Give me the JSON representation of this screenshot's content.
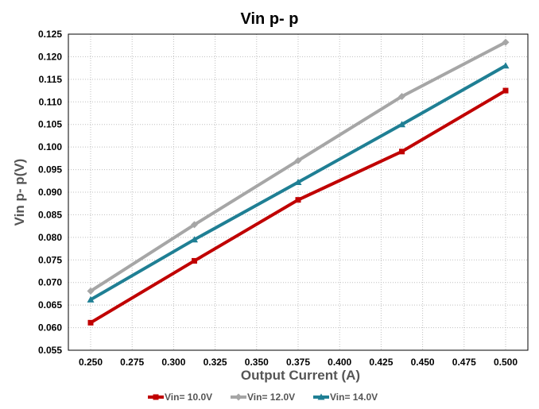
{
  "chart_data": {
    "type": "line",
    "title": "Vin p- p",
    "xlabel": "Output Current (A)",
    "ylabel": "Vin p- p(V)",
    "xlim": [
      0.25,
      0.5
    ],
    "ylim": [
      0.055,
      0.125
    ],
    "x_ticks": [
      "0.250",
      "0.275",
      "0.300",
      "0.325",
      "0.350",
      "0.375",
      "0.400",
      "0.425",
      "0.450",
      "0.475",
      "0.500"
    ],
    "y_ticks": [
      "0.125",
      "0.120",
      "0.115",
      "0.110",
      "0.105",
      "0.100",
      "0.095",
      "0.090",
      "0.085",
      "0.080",
      "0.075",
      "0.070",
      "0.065",
      "0.060",
      "0.055"
    ],
    "grid": true,
    "legend_position": "bottom",
    "x": [
      0.25,
      0.3125,
      0.375,
      0.4375,
      0.5
    ],
    "series": [
      {
        "name": "Vin= 10.0V",
        "color": "#c00000",
        "marker": "square",
        "values": [
          0.0611,
          0.0748,
          0.0883,
          0.099,
          0.1125
        ]
      },
      {
        "name": "Vin= 12.0V",
        "color": "#a6a6a6",
        "marker": "diamond",
        "values": [
          0.0681,
          0.0828,
          0.097,
          0.1112,
          0.1232
        ]
      },
      {
        "name": "Vin= 14.0V",
        "color": "#1f7f94",
        "marker": "triangle",
        "values": [
          0.0662,
          0.0795,
          0.0922,
          0.105,
          0.118
        ]
      }
    ]
  }
}
